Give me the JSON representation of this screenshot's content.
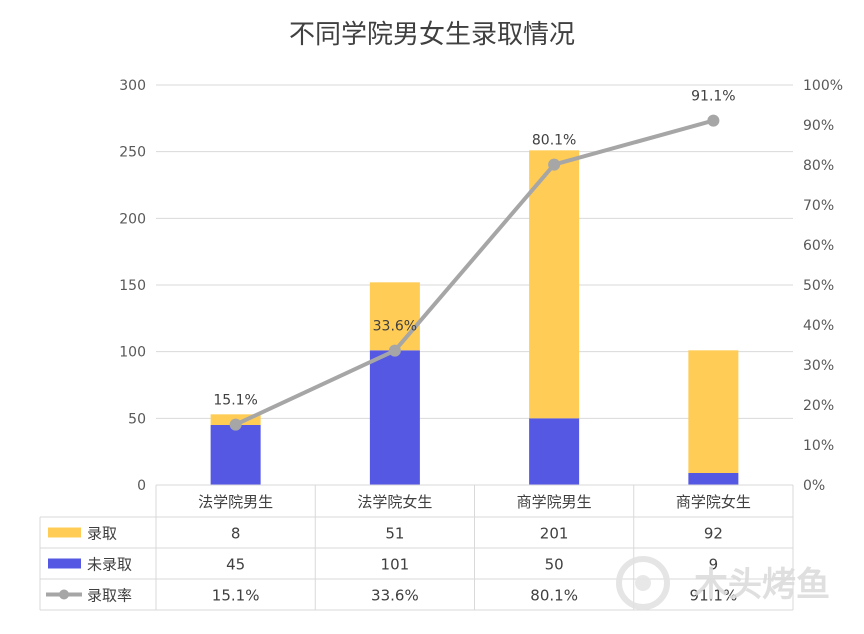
{
  "chart_data": {
    "type": "bar",
    "title": "不同学院男女生录取情况",
    "categories": [
      "法学院男生",
      "法学院女生",
      "商学院男生",
      "商学院女生"
    ],
    "stacked": true,
    "series": [
      {
        "name": "录取",
        "type": "bar",
        "color": "#FFCC55",
        "values": [
          8,
          51,
          201,
          92
        ]
      },
      {
        "name": "未录取",
        "type": "bar",
        "color": "#5558E3",
        "values": [
          45,
          101,
          50,
          9
        ]
      },
      {
        "name": "录取率",
        "type": "line",
        "axis": "secondary",
        "color": "#A6A6A6",
        "values": [
          15.1,
          33.6,
          80.1,
          91.1
        ],
        "labels": [
          "15.1%",
          "33.6%",
          "80.1%",
          "91.1%"
        ]
      }
    ],
    "y_left": {
      "range": [
        0,
        300
      ],
      "ticks": [
        0,
        50,
        100,
        150,
        200,
        250,
        300
      ]
    },
    "y_right": {
      "range": [
        0,
        100
      ],
      "ticks": [
        "0%",
        "10%",
        "20%",
        "30%",
        "40%",
        "50%",
        "60%",
        "70%",
        "80%",
        "90%",
        "100%"
      ]
    },
    "grid": true,
    "legend": "data-table-bottom"
  },
  "watermark": {
    "text": "木头烤鱼"
  }
}
